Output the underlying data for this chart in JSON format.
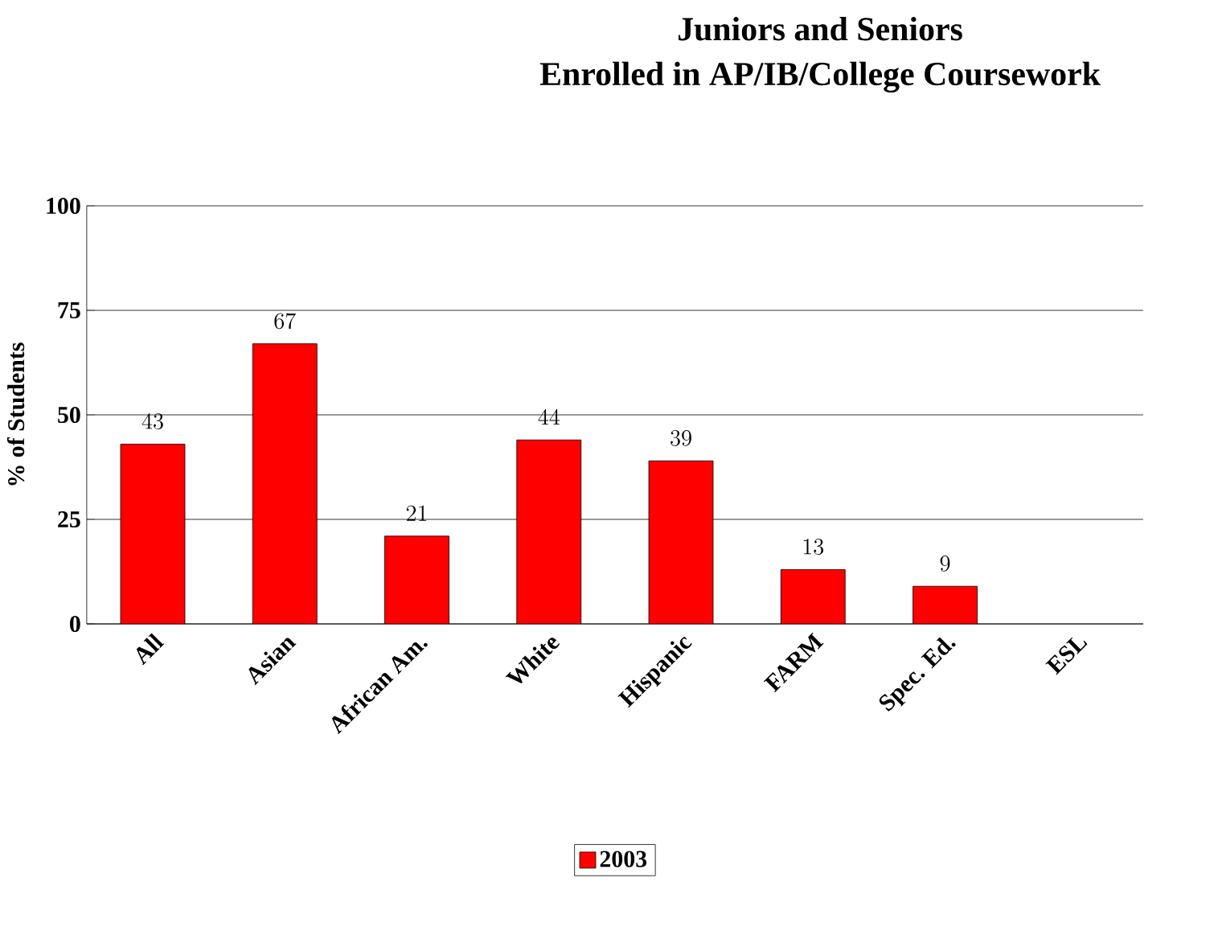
{
  "chart_data": {
    "type": "bar",
    "title": "Juniors and Seniors",
    "subtitle": "Enrolled in AP/IB/College Coursework",
    "ylabel": "% of Students",
    "categories": [
      "All",
      "Asian",
      "African Am.",
      "White",
      "Hispanic",
      "FARM",
      "Spec. Ed.",
      "ESL"
    ],
    "series": [
      {
        "name": "2003",
        "color": "#ff0000",
        "values": [
          43,
          67,
          21,
          44,
          39,
          13,
          9,
          null
        ]
      }
    ],
    "ylim": [
      0,
      100
    ],
    "yticks": [
      0,
      25,
      50,
      75,
      100
    ],
    "grid": "y",
    "legend": "bottom",
    "data_labels": true
  }
}
